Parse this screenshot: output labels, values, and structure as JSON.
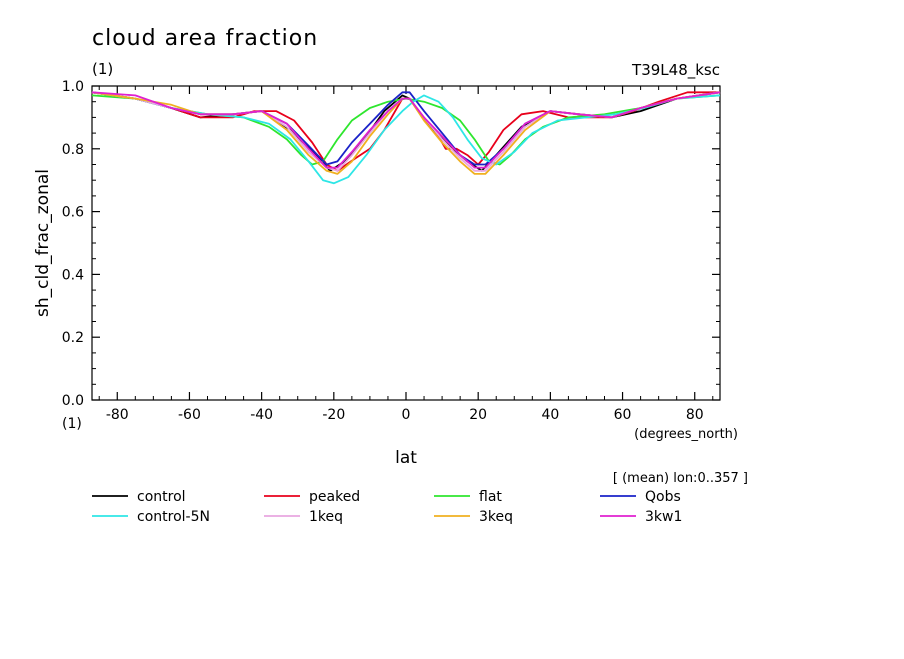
{
  "header": {
    "title": "cloud area fraction",
    "title_units": "(1)",
    "run_label": "T39L48_ksc"
  },
  "chart_data": {
    "type": "line",
    "title": "cloud area fraction",
    "xlabel": "lat",
    "xunits": "(degrees_north)",
    "ylabel": "sh_cld_frac_zonal",
    "yunits": "(1)",
    "subtitle": "[ (mean) lon:0..357 ]",
    "xlim": [
      -87,
      87
    ],
    "ylim": [
      0.0,
      1.0
    ],
    "xticks": [
      -80,
      -60,
      -40,
      -20,
      0,
      20,
      40,
      60,
      80
    ],
    "xtick_labels": [
      "-80",
      "-60",
      "-40",
      "-20",
      "0",
      "20",
      "40",
      "60",
      "80"
    ],
    "yticks": [
      0.0,
      0.2,
      0.4,
      0.6,
      0.8,
      1.0
    ],
    "ytick_labels": [
      "0.0",
      "0.2",
      "0.4",
      "0.6",
      "0.8",
      "1.0"
    ],
    "grid": false,
    "legend_position": "bottom",
    "series": [
      {
        "name": "control",
        "color": "#000000",
        "x": [
          -87,
          -75,
          -65,
          -57,
          -48,
          -40,
          -32,
          -25,
          -21,
          -17,
          -11,
          -6,
          -1,
          1,
          6,
          11,
          17,
          21,
          25,
          32,
          40,
          48,
          57,
          65,
          75,
          87
        ],
        "y": [
          0.98,
          0.96,
          0.93,
          0.9,
          0.91,
          0.92,
          0.86,
          0.78,
          0.73,
          0.76,
          0.84,
          0.92,
          0.97,
          0.96,
          0.88,
          0.82,
          0.76,
          0.73,
          0.78,
          0.87,
          0.92,
          0.91,
          0.9,
          0.92,
          0.96,
          0.98
        ]
      },
      {
        "name": "peaked",
        "color": "#e8001b",
        "x": [
          -87,
          -75,
          -65,
          -57,
          -48,
          -42,
          -36,
          -31,
          -26,
          -22,
          -19,
          -14,
          -10,
          -6,
          -1,
          1,
          4,
          8,
          11,
          14,
          17,
          20,
          23,
          27,
          32,
          38,
          45,
          52,
          57,
          63,
          70,
          78,
          87
        ],
        "y": [
          0.98,
          0.96,
          0.93,
          0.9,
          0.9,
          0.92,
          0.92,
          0.89,
          0.82,
          0.75,
          0.73,
          0.77,
          0.8,
          0.86,
          0.96,
          0.96,
          0.91,
          0.86,
          0.8,
          0.8,
          0.78,
          0.75,
          0.79,
          0.86,
          0.91,
          0.92,
          0.9,
          0.9,
          0.9,
          0.92,
          0.95,
          0.98,
          0.98
        ]
      },
      {
        "name": "flat",
        "color": "#2ee62e",
        "x": [
          -87,
          -75,
          -65,
          -55,
          -45,
          -38,
          -33,
          -29,
          -26,
          -23,
          -19,
          -15,
          -10,
          -5,
          0,
          5,
          10,
          15,
          19,
          23,
          26,
          29,
          33,
          38,
          45,
          55,
          65,
          75,
          87
        ],
        "y": [
          0.97,
          0.96,
          0.93,
          0.91,
          0.9,
          0.87,
          0.83,
          0.78,
          0.75,
          0.76,
          0.83,
          0.89,
          0.93,
          0.95,
          0.96,
          0.95,
          0.93,
          0.89,
          0.83,
          0.76,
          0.75,
          0.78,
          0.83,
          0.87,
          0.9,
          0.91,
          0.93,
          0.96,
          0.97
        ]
      },
      {
        "name": "Qobs",
        "color": "#1a22c8",
        "x": [
          -87,
          -75,
          -65,
          -57,
          -48,
          -40,
          -33,
          -27,
          -22,
          -19,
          -15,
          -10,
          -5,
          -1,
          1,
          5,
          10,
          15,
          19,
          22,
          27,
          33,
          40,
          48,
          57,
          65,
          75,
          87
        ],
        "y": [
          0.98,
          0.96,
          0.93,
          0.91,
          0.91,
          0.92,
          0.88,
          0.81,
          0.75,
          0.76,
          0.82,
          0.88,
          0.94,
          0.98,
          0.98,
          0.92,
          0.85,
          0.78,
          0.75,
          0.75,
          0.8,
          0.88,
          0.92,
          0.91,
          0.9,
          0.93,
          0.96,
          0.98
        ]
      },
      {
        "name": "control-5N",
        "color": "#2ee6e6",
        "x": [
          -87,
          -75,
          -65,
          -55,
          -45,
          -38,
          -32,
          -27,
          -23,
          -20,
          -16,
          -11,
          -6,
          -1,
          2,
          5,
          9,
          13,
          17,
          21,
          25,
          30,
          35,
          42,
          50,
          58,
          66,
          75,
          87
        ],
        "y": [
          0.98,
          0.96,
          0.93,
          0.91,
          0.9,
          0.88,
          0.83,
          0.76,
          0.7,
          0.69,
          0.71,
          0.78,
          0.86,
          0.92,
          0.95,
          0.97,
          0.95,
          0.9,
          0.83,
          0.77,
          0.75,
          0.79,
          0.85,
          0.89,
          0.9,
          0.91,
          0.93,
          0.96,
          0.97
        ]
      },
      {
        "name": "1keq",
        "color": "#e8a6e0",
        "x": [
          -87,
          -75,
          -65,
          -57,
          -48,
          -40,
          -33,
          -27,
          -22,
          -19,
          -15,
          -10,
          -5,
          -1,
          1,
          5,
          10,
          15,
          19,
          22,
          27,
          33,
          40,
          48,
          57,
          65,
          75,
          87
        ],
        "y": [
          0.98,
          0.96,
          0.93,
          0.91,
          0.91,
          0.92,
          0.87,
          0.79,
          0.74,
          0.73,
          0.78,
          0.85,
          0.92,
          0.96,
          0.96,
          0.9,
          0.83,
          0.77,
          0.73,
          0.73,
          0.79,
          0.87,
          0.92,
          0.91,
          0.9,
          0.93,
          0.96,
          0.98
        ]
      },
      {
        "name": "3keq",
        "color": "#f0b020",
        "x": [
          -87,
          -75,
          -65,
          -57,
          -48,
          -40,
          -33,
          -27,
          -22,
          -19,
          -15,
          -10,
          -5,
          -1,
          1,
          5,
          10,
          15,
          19,
          22,
          27,
          33,
          40,
          48,
          57,
          65,
          75,
          87
        ],
        "y": [
          0.98,
          0.96,
          0.94,
          0.91,
          0.91,
          0.92,
          0.86,
          0.78,
          0.73,
          0.72,
          0.76,
          0.84,
          0.91,
          0.96,
          0.96,
          0.89,
          0.82,
          0.76,
          0.72,
          0.72,
          0.78,
          0.86,
          0.92,
          0.91,
          0.9,
          0.93,
          0.96,
          0.98
        ]
      },
      {
        "name": "3kw1",
        "color": "#e020d0",
        "x": [
          -87,
          -75,
          -65,
          -57,
          -48,
          -40,
          -33,
          -27,
          -22,
          -19,
          -15,
          -10,
          -5,
          -1,
          1,
          5,
          10,
          15,
          19,
          22,
          27,
          33,
          40,
          48,
          57,
          65,
          75,
          87
        ],
        "y": [
          0.98,
          0.97,
          0.93,
          0.91,
          0.91,
          0.92,
          0.88,
          0.8,
          0.74,
          0.74,
          0.79,
          0.86,
          0.92,
          0.96,
          0.96,
          0.9,
          0.84,
          0.78,
          0.74,
          0.74,
          0.8,
          0.88,
          0.92,
          0.91,
          0.9,
          0.93,
          0.96,
          0.98
        ]
      }
    ]
  }
}
